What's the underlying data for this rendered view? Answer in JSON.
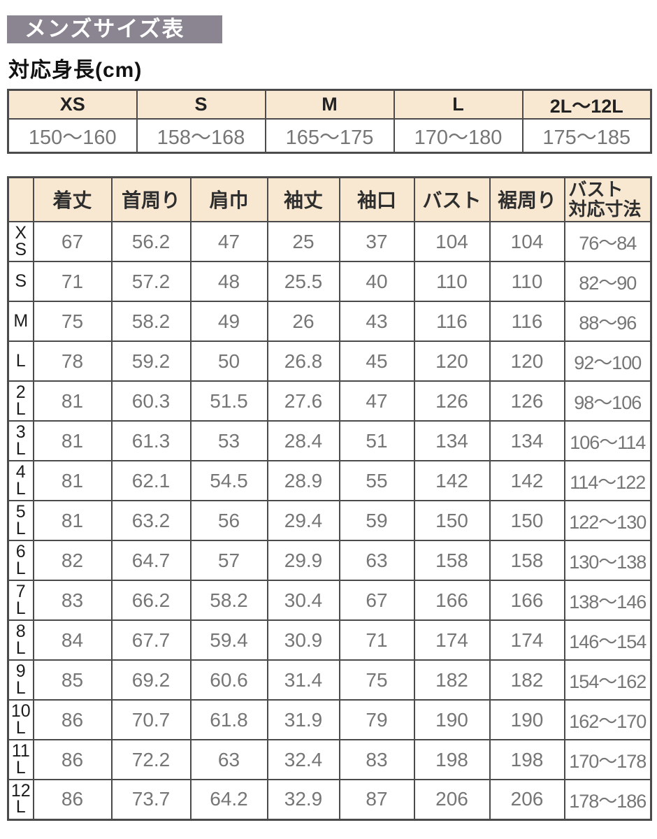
{
  "page": {
    "title": "メンズサイズ表",
    "height_label": "対応身長(cm)"
  },
  "colors": {
    "title_bg": "#8b8591",
    "title_text": "#ffffff",
    "table_header_bg": "#f8e8d1",
    "border": "#4b4b4b",
    "value_text": "#767676",
    "label_text": "#1c1c1c"
  },
  "height_table": {
    "columns": [
      "XS",
      "S",
      "M",
      "L",
      "2L〜12L"
    ],
    "values": [
      "150〜160",
      "158〜168",
      "165〜175",
      "170〜180",
      "175〜185"
    ]
  },
  "size_table": {
    "corner": "",
    "columns": [
      "着丈",
      "首周り",
      "肩巾",
      "袖丈",
      "袖口",
      "バスト",
      "裾周り",
      "バスト\n対応寸法"
    ],
    "rows": [
      {
        "size": "XS",
        "values": [
          "67",
          "56.2",
          "47",
          "25",
          "37",
          "104",
          "104",
          "76〜84"
        ]
      },
      {
        "size": "S",
        "values": [
          "71",
          "57.2",
          "48",
          "25.5",
          "40",
          "110",
          "110",
          "82〜90"
        ]
      },
      {
        "size": "M",
        "values": [
          "75",
          "58.2",
          "49",
          "26",
          "43",
          "116",
          "116",
          "88〜96"
        ]
      },
      {
        "size": "L",
        "values": [
          "78",
          "59.2",
          "50",
          "26.8",
          "45",
          "120",
          "120",
          "92〜100"
        ]
      },
      {
        "size": "2L",
        "values": [
          "81",
          "60.3",
          "51.5",
          "27.6",
          "47",
          "126",
          "126",
          "98〜106"
        ]
      },
      {
        "size": "3L",
        "values": [
          "81",
          "61.3",
          "53",
          "28.4",
          "51",
          "134",
          "134",
          "106〜114"
        ]
      },
      {
        "size": "4L",
        "values": [
          "81",
          "62.1",
          "54.5",
          "28.9",
          "55",
          "142",
          "142",
          "114〜122"
        ]
      },
      {
        "size": "5L",
        "values": [
          "81",
          "63.2",
          "56",
          "29.4",
          "59",
          "150",
          "150",
          "122〜130"
        ]
      },
      {
        "size": "6L",
        "values": [
          "82",
          "64.7",
          "57",
          "29.9",
          "63",
          "158",
          "158",
          "130〜138"
        ]
      },
      {
        "size": "7L",
        "values": [
          "83",
          "66.2",
          "58.2",
          "30.4",
          "67",
          "166",
          "166",
          "138〜146"
        ]
      },
      {
        "size": "8L",
        "values": [
          "84",
          "67.7",
          "59.4",
          "30.9",
          "71",
          "174",
          "174",
          "146〜154"
        ]
      },
      {
        "size": "9L",
        "values": [
          "85",
          "69.2",
          "60.6",
          "31.4",
          "75",
          "182",
          "182",
          "154〜162"
        ]
      },
      {
        "size": "10L",
        "values": [
          "86",
          "70.7",
          "61.8",
          "31.9",
          "79",
          "190",
          "190",
          "162〜170"
        ]
      },
      {
        "size": "11L",
        "values": [
          "86",
          "72.2",
          "63",
          "32.4",
          "83",
          "198",
          "198",
          "170〜178"
        ]
      },
      {
        "size": "12L",
        "values": [
          "86",
          "73.7",
          "64.2",
          "32.9",
          "87",
          "206",
          "206",
          "178〜186"
        ]
      }
    ]
  }
}
